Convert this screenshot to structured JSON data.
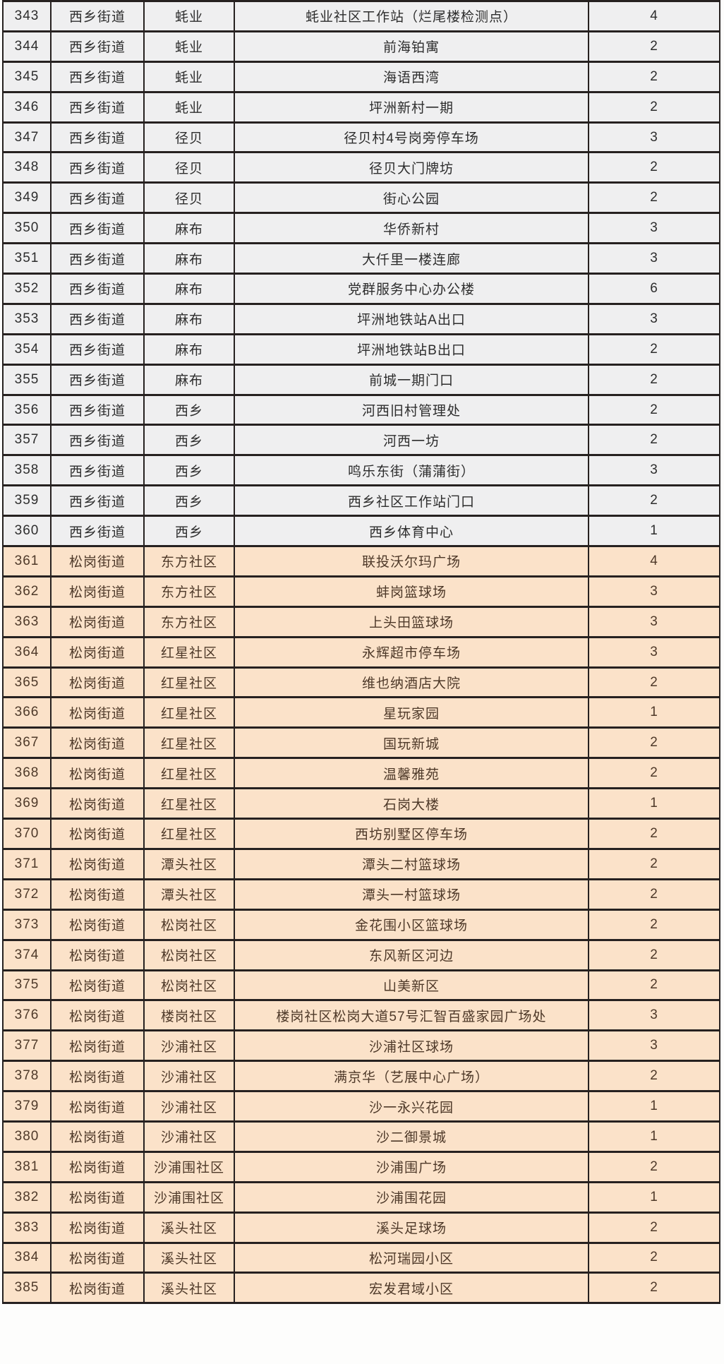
{
  "table": {
    "rows": [
      {
        "no": "343",
        "street": "西乡街道",
        "community": "蚝业",
        "location": "蚝业社区工作站（烂尾楼检测点）",
        "count": "4",
        "section": "gray"
      },
      {
        "no": "344",
        "street": "西乡街道",
        "community": "蚝业",
        "location": "前海铂寓",
        "count": "2",
        "section": "gray"
      },
      {
        "no": "345",
        "street": "西乡街道",
        "community": "蚝业",
        "location": "海语西湾",
        "count": "2",
        "section": "gray"
      },
      {
        "no": "346",
        "street": "西乡街道",
        "community": "蚝业",
        "location": "坪洲新村一期",
        "count": "2",
        "section": "gray"
      },
      {
        "no": "347",
        "street": "西乡街道",
        "community": "径贝",
        "location": "径贝村4号岗旁停车场",
        "count": "3",
        "section": "gray"
      },
      {
        "no": "348",
        "street": "西乡街道",
        "community": "径贝",
        "location": "径贝大门牌坊",
        "count": "2",
        "section": "gray"
      },
      {
        "no": "349",
        "street": "西乡街道",
        "community": "径贝",
        "location": "街心公园",
        "count": "2",
        "section": "gray"
      },
      {
        "no": "350",
        "street": "西乡街道",
        "community": "麻布",
        "location": "华侨新村",
        "count": "3",
        "section": "gray"
      },
      {
        "no": "351",
        "street": "西乡街道",
        "community": "麻布",
        "location": "大仟里一楼连廊",
        "count": "3",
        "section": "gray"
      },
      {
        "no": "352",
        "street": "西乡街道",
        "community": "麻布",
        "location": "党群服务中心办公楼",
        "count": "6",
        "section": "gray"
      },
      {
        "no": "353",
        "street": "西乡街道",
        "community": "麻布",
        "location": "坪洲地铁站A出口",
        "count": "3",
        "section": "gray"
      },
      {
        "no": "354",
        "street": "西乡街道",
        "community": "麻布",
        "location": "坪洲地铁站B出口",
        "count": "2",
        "section": "gray"
      },
      {
        "no": "355",
        "street": "西乡街道",
        "community": "麻布",
        "location": "前城一期门口",
        "count": "2",
        "section": "gray"
      },
      {
        "no": "356",
        "street": "西乡街道",
        "community": "西乡",
        "location": "河西旧村管理处",
        "count": "2",
        "section": "gray"
      },
      {
        "no": "357",
        "street": "西乡街道",
        "community": "西乡",
        "location": "河西一坊",
        "count": "2",
        "section": "gray"
      },
      {
        "no": "358",
        "street": "西乡街道",
        "community": "西乡",
        "location": "鸣乐东街（蒲蒲街）",
        "count": "3",
        "section": "gray"
      },
      {
        "no": "359",
        "street": "西乡街道",
        "community": "西乡",
        "location": "西乡社区工作站门口",
        "count": "2",
        "section": "gray"
      },
      {
        "no": "360",
        "street": "西乡街道",
        "community": "西乡",
        "location": "西乡体育中心",
        "count": "1",
        "section": "gray"
      },
      {
        "no": "361",
        "street": "松岗街道",
        "community": "东方社区",
        "location": "联投沃尔玛广场",
        "count": "4",
        "section": "orange"
      },
      {
        "no": "362",
        "street": "松岗街道",
        "community": "东方社区",
        "location": "蚌岗篮球场",
        "count": "3",
        "section": "orange"
      },
      {
        "no": "363",
        "street": "松岗街道",
        "community": "东方社区",
        "location": "上头田篮球场",
        "count": "3",
        "section": "orange"
      },
      {
        "no": "364",
        "street": "松岗街道",
        "community": "红星社区",
        "location": "永辉超市停车场",
        "count": "3",
        "section": "orange"
      },
      {
        "no": "365",
        "street": "松岗街道",
        "community": "红星社区",
        "location": "维也纳酒店大院",
        "count": "2",
        "section": "orange"
      },
      {
        "no": "366",
        "street": "松岗街道",
        "community": "红星社区",
        "location": "星玩家园",
        "count": "1",
        "section": "orange"
      },
      {
        "no": "367",
        "street": "松岗街道",
        "community": "红星社区",
        "location": "国玩新城",
        "count": "2",
        "section": "orange"
      },
      {
        "no": "368",
        "street": "松岗街道",
        "community": "红星社区",
        "location": "温馨雅苑",
        "count": "2",
        "section": "orange"
      },
      {
        "no": "369",
        "street": "松岗街道",
        "community": "红星社区",
        "location": "石岗大楼",
        "count": "1",
        "section": "orange"
      },
      {
        "no": "370",
        "street": "松岗街道",
        "community": "红星社区",
        "location": "西坊别墅区停车场",
        "count": "2",
        "section": "orange"
      },
      {
        "no": "371",
        "street": "松岗街道",
        "community": "潭头社区",
        "location": "潭头二村篮球场",
        "count": "2",
        "section": "orange"
      },
      {
        "no": "372",
        "street": "松岗街道",
        "community": "潭头社区",
        "location": "潭头一村篮球场",
        "count": "2",
        "section": "orange"
      },
      {
        "no": "373",
        "street": "松岗街道",
        "community": "松岗社区",
        "location": "金花围小区篮球场",
        "count": "2",
        "section": "orange"
      },
      {
        "no": "374",
        "street": "松岗街道",
        "community": "松岗社区",
        "location": "东风新区河边",
        "count": "2",
        "section": "orange"
      },
      {
        "no": "375",
        "street": "松岗街道",
        "community": "松岗社区",
        "location": "山美新区",
        "count": "2",
        "section": "orange"
      },
      {
        "no": "376",
        "street": "松岗街道",
        "community": "楼岗社区",
        "location": "楼岗社区松岗大道57号汇智百盛家园广场处",
        "count": "3",
        "section": "orange"
      },
      {
        "no": "377",
        "street": "松岗街道",
        "community": "沙浦社区",
        "location": "沙浦社区球场",
        "count": "3",
        "section": "orange"
      },
      {
        "no": "378",
        "street": "松岗街道",
        "community": "沙浦社区",
        "location": "满京华（艺展中心广场）",
        "count": "2",
        "section": "orange"
      },
      {
        "no": "379",
        "street": "松岗街道",
        "community": "沙浦社区",
        "location": "沙一永兴花园",
        "count": "1",
        "section": "orange"
      },
      {
        "no": "380",
        "street": "松岗街道",
        "community": "沙浦社区",
        "location": "沙二御景城",
        "count": "1",
        "section": "orange"
      },
      {
        "no": "381",
        "street": "松岗街道",
        "community": "沙浦围社区",
        "location": "沙浦围广场",
        "count": "2",
        "section": "orange"
      },
      {
        "no": "382",
        "street": "松岗街道",
        "community": "沙浦围社区",
        "location": "沙浦围花园",
        "count": "1",
        "section": "orange"
      },
      {
        "no": "383",
        "street": "松岗街道",
        "community": "溪头社区",
        "location": "溪头足球场",
        "count": "2",
        "section": "orange"
      },
      {
        "no": "384",
        "street": "松岗街道",
        "community": "溪头社区",
        "location": "松河瑞园小区",
        "count": "2",
        "section": "orange"
      },
      {
        "no": "385",
        "street": "松岗街道",
        "community": "溪头社区",
        "location": "宏发君域小区",
        "count": "2",
        "section": "orange"
      }
    ]
  },
  "colors": {
    "gray_row_bg": "#efeff0",
    "orange_row_bg": "#fbe2c9",
    "border": "#262120",
    "gray_text": "#2d2d2d",
    "orange_text": "#4e3929"
  }
}
